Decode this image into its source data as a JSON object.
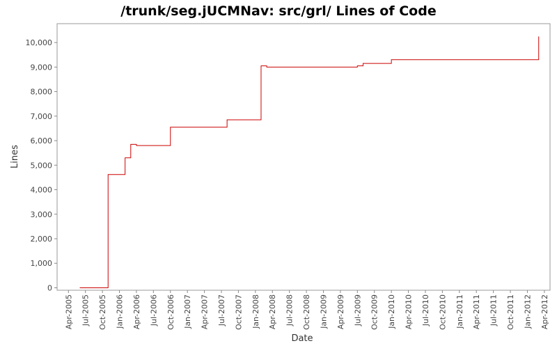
{
  "chart_data": {
    "type": "line",
    "step": true,
    "title": "/trunk/seg.jUCMNav: src/grl/ Lines of Code",
    "x_label": "Date",
    "y_label": "Lines",
    "series": [
      {
        "name": "Lines",
        "color": "#cc0000",
        "x": [
          "2005-06",
          "2005-11",
          "2006-02",
          "2006-03",
          "2006-04",
          "2006-10",
          "2007-08",
          "2008-02",
          "2008-03",
          "2009-07",
          "2009-08",
          "2010-01",
          "2012-03"
        ],
        "values": [
          0,
          4620,
          5300,
          5850,
          5800,
          6550,
          6850,
          9050,
          9000,
          9050,
          9150,
          9300,
          10250
        ]
      }
    ],
    "xlim": [
      "2005-02",
      "2012-05"
    ],
    "xticks": [
      {
        "value": "2005-04",
        "label": "Apr-2005"
      },
      {
        "value": "2005-07",
        "label": "Jul-2005"
      },
      {
        "value": "2005-10",
        "label": "Oct-2005"
      },
      {
        "value": "2006-01",
        "label": "Jan-2006"
      },
      {
        "value": "2006-04",
        "label": "Apr-2006"
      },
      {
        "value": "2006-07",
        "label": "Jul-2006"
      },
      {
        "value": "2006-10",
        "label": "Oct-2006"
      },
      {
        "value": "2007-01",
        "label": "Jan-2007"
      },
      {
        "value": "2007-04",
        "label": "Apr-2007"
      },
      {
        "value": "2007-07",
        "label": "Jul-2007"
      },
      {
        "value": "2007-10",
        "label": "Oct-2007"
      },
      {
        "value": "2008-01",
        "label": "Jan-2008"
      },
      {
        "value": "2008-04",
        "label": "Apr-2008"
      },
      {
        "value": "2008-07",
        "label": "Jul-2008"
      },
      {
        "value": "2008-10",
        "label": "Oct-2008"
      },
      {
        "value": "2009-01",
        "label": "Jan-2009"
      },
      {
        "value": "2009-04",
        "label": "Apr-2009"
      },
      {
        "value": "2009-07",
        "label": "Jul-2009"
      },
      {
        "value": "2009-10",
        "label": "Oct-2009"
      },
      {
        "value": "2010-01",
        "label": "Jan-2010"
      },
      {
        "value": "2010-04",
        "label": "Apr-2010"
      },
      {
        "value": "2010-07",
        "label": "Jul-2010"
      },
      {
        "value": "2010-10",
        "label": "Oct-2010"
      },
      {
        "value": "2011-01",
        "label": "Jan-2011"
      },
      {
        "value": "2011-04",
        "label": "Apr-2011"
      },
      {
        "value": "2011-07",
        "label": "Jul-2011"
      },
      {
        "value": "2011-10",
        "label": "Oct-2011"
      },
      {
        "value": "2012-01",
        "label": "Jan-2012"
      },
      {
        "value": "2012-04",
        "label": "Apr-2012"
      }
    ],
    "ylim": [
      -100,
      10770
    ],
    "yticks": [
      0,
      {
        "value": 1000,
        "label": "1,000"
      },
      {
        "value": 2000,
        "label": "2,000"
      },
      {
        "value": 3000,
        "label": "3,000"
      },
      {
        "value": 4000,
        "label": "4,000"
      },
      {
        "value": 5000,
        "label": "5,000"
      },
      {
        "value": 6000,
        "label": "6,000"
      },
      {
        "value": 7000,
        "label": "7,000"
      },
      {
        "value": 8000,
        "label": "8,000"
      },
      {
        "value": 9000,
        "label": "9,000"
      },
      {
        "value": 10000,
        "label": "10,000"
      }
    ],
    "grid": false
  }
}
